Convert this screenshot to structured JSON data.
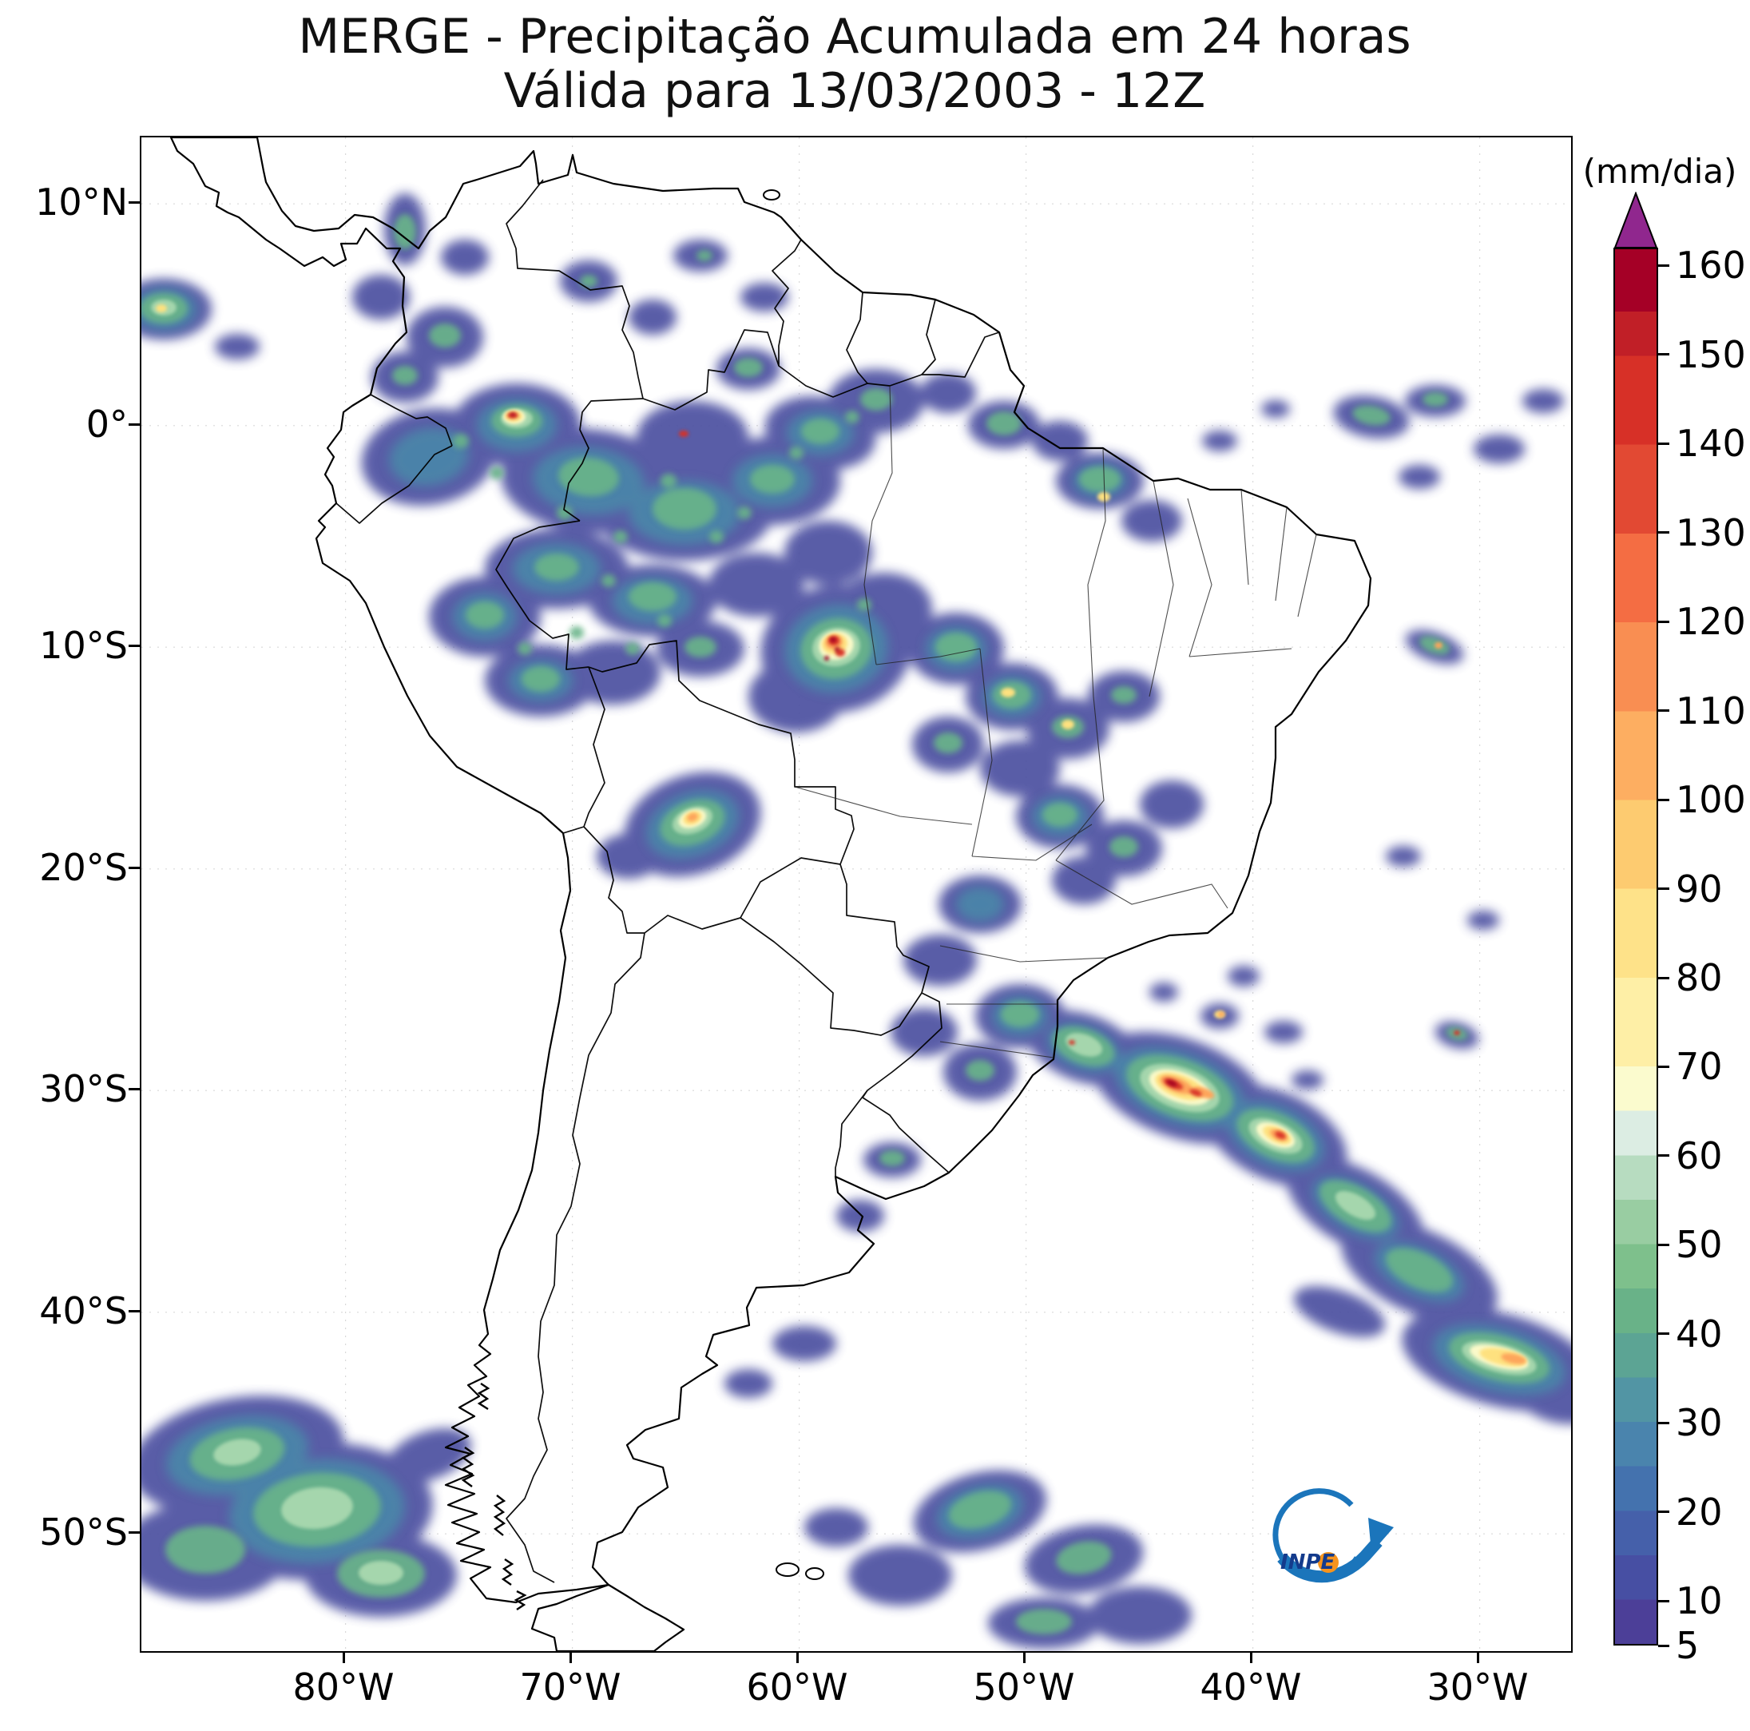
{
  "title": {
    "line1": "MERGE - Precipitação Acumulada em 24 horas",
    "line2": "Válida para 13/03/2003 - 12Z"
  },
  "axes": {
    "y_labels": [
      "10°N",
      "0°",
      "10°S",
      "20°S",
      "30°S",
      "40°S",
      "50°S"
    ],
    "x_labels": [
      "80°W",
      "70°W",
      "60°W",
      "50°W",
      "40°W",
      "30°W"
    ]
  },
  "colorbar": {
    "label": "(mm/dia)",
    "ticks": [
      160,
      150,
      140,
      130,
      120,
      110,
      100,
      90,
      80,
      70,
      60,
      50,
      40,
      30,
      20,
      10,
      5
    ],
    "vmin": 5,
    "vmax": 162,
    "arrow_color": "#90278E",
    "bands": [
      {
        "from": 5,
        "to": 10,
        "color": "#4C3F98"
      },
      {
        "from": 10,
        "to": 15,
        "color": "#474FA3"
      },
      {
        "from": 15,
        "to": 20,
        "color": "#4560AA"
      },
      {
        "from": 20,
        "to": 25,
        "color": "#4472AE"
      },
      {
        "from": 25,
        "to": 30,
        "color": "#4A84AD"
      },
      {
        "from": 30,
        "to": 35,
        "color": "#5295A4"
      },
      {
        "from": 35,
        "to": 40,
        "color": "#5CA494"
      },
      {
        "from": 40,
        "to": 45,
        "color": "#69B288"
      },
      {
        "from": 45,
        "to": 50,
        "color": "#7EC08C"
      },
      {
        "from": 50,
        "to": 55,
        "color": "#99CDA2"
      },
      {
        "from": 55,
        "to": 60,
        "color": "#B7DCC0"
      },
      {
        "from": 60,
        "to": 65,
        "color": "#DCEDE3"
      },
      {
        "from": 65,
        "to": 70,
        "color": "#FBFBCE"
      },
      {
        "from": 70,
        "to": 80,
        "color": "#FEEFA6"
      },
      {
        "from": 80,
        "to": 90,
        "color": "#FEE289"
      },
      {
        "from": 90,
        "to": 100,
        "color": "#FDCB70"
      },
      {
        "from": 100,
        "to": 110,
        "color": "#FDAE61"
      },
      {
        "from": 110,
        "to": 120,
        "color": "#F98E52"
      },
      {
        "from": 120,
        "to": 130,
        "color": "#F46D43"
      },
      {
        "from": 130,
        "to": 140,
        "color": "#E24933"
      },
      {
        "from": 140,
        "to": 150,
        "color": "#D73027"
      },
      {
        "from": 150,
        "to": 155,
        "color": "#C11F27"
      },
      {
        "from": 155,
        "to": 160,
        "color": "#A50026"
      }
    ]
  },
  "logo": {
    "text": "INPE"
  }
}
